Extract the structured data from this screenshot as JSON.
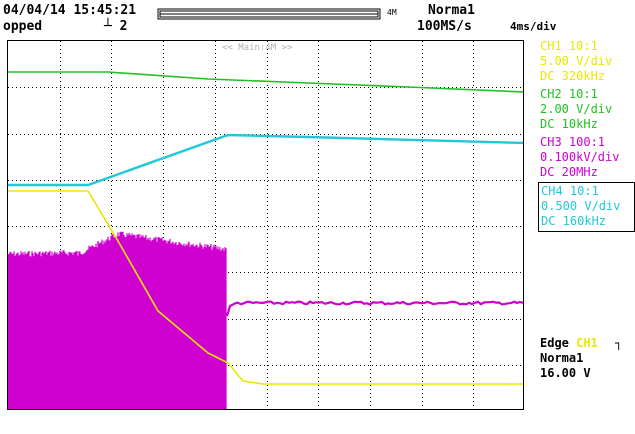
{
  "header": {
    "date": "04/04/14",
    "time": "15:45:21",
    "status": "opped",
    "trigger_pos_label": "2",
    "memory_label": "4M",
    "mode": "Norma1",
    "sample_rate": "100MS/s",
    "timebase": "4ms/div",
    "main_label": "<< Main:4M >>"
  },
  "channels": [
    {
      "name": "CH1 10:1",
      "scale": "5.00 V/div",
      "coupling_bw": "DC   320kHz",
      "color": "#e8e800"
    },
    {
      "name": "CH2 10:1",
      "scale": "2.00 V/div",
      "coupling_bw": "DC   10kHz",
      "color": "#22c022"
    },
    {
      "name": "CH3 100:1",
      "scale": "0.100kV/div",
      "coupling_bw": "DC   20MHz",
      "color": "#d000d0"
    },
    {
      "name": "CH4 10:1",
      "scale": "0.500 V/div",
      "coupling_bw": "DC   160kHz",
      "color": "#20c8d8"
    }
  ],
  "trigger": {
    "type": "Edge",
    "source": "CH1",
    "slope_icon": "falling-edge-icon",
    "mode": "Norma1",
    "level": "16.00 V"
  },
  "grid": {
    "divisions_x": 10,
    "divisions_y": 8,
    "visible": true
  }
}
